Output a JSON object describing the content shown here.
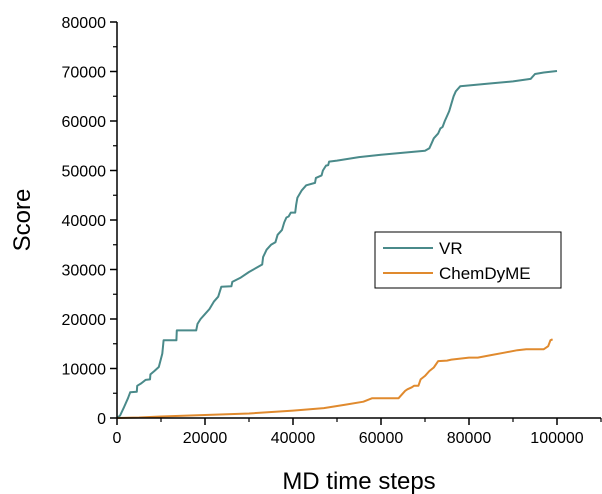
{
  "chart_data": {
    "type": "line",
    "xlabel": "MD time steps",
    "ylabel": "Score",
    "xlim": [
      0,
      110000
    ],
    "ylim": [
      0,
      80000
    ],
    "x_ticks": [
      0,
      20000,
      40000,
      60000,
      80000,
      100000
    ],
    "x_tick_labels": [
      "0",
      "20000",
      "40000",
      "60000",
      "80000",
      "100000"
    ],
    "y_ticks": [
      0,
      10000,
      20000,
      30000,
      40000,
      50000,
      60000,
      70000,
      80000
    ],
    "y_tick_labels": [
      "0",
      "10000",
      "20000",
      "30000",
      "40000",
      "50000",
      "60000",
      "70000",
      "80000"
    ],
    "grid": false,
    "legend_position": "center-right",
    "series": [
      {
        "name": "VR",
        "color": "#4a8a8a",
        "points": [
          [
            0,
            0
          ],
          [
            700,
            500
          ],
          [
            1500,
            2000
          ],
          [
            2500,
            4000
          ],
          [
            3000,
            5200
          ],
          [
            4500,
            5300
          ],
          [
            4600,
            6500
          ],
          [
            5500,
            7000
          ],
          [
            6500,
            7700
          ],
          [
            7500,
            7800
          ],
          [
            7600,
            8800
          ],
          [
            8500,
            9500
          ],
          [
            9500,
            10300
          ],
          [
            10000,
            12000
          ],
          [
            10300,
            13000
          ],
          [
            10600,
            15700
          ],
          [
            13500,
            15700
          ],
          [
            13600,
            17700
          ],
          [
            18000,
            17700
          ],
          [
            18300,
            19000
          ],
          [
            19000,
            20000
          ],
          [
            20000,
            21000
          ],
          [
            21000,
            22000
          ],
          [
            22000,
            23500
          ],
          [
            22500,
            24000
          ],
          [
            23000,
            24500
          ],
          [
            23700,
            26500
          ],
          [
            26000,
            26600
          ],
          [
            26200,
            27500
          ],
          [
            28000,
            28300
          ],
          [
            30000,
            29500
          ],
          [
            32000,
            30500
          ],
          [
            33000,
            31000
          ],
          [
            33200,
            32500
          ],
          [
            34000,
            34000
          ],
          [
            35000,
            35000
          ],
          [
            36000,
            35500
          ],
          [
            36500,
            37000
          ],
          [
            37500,
            38000
          ],
          [
            38000,
            39500
          ],
          [
            38500,
            40500
          ],
          [
            39000,
            40700
          ],
          [
            39500,
            41500
          ],
          [
            40500,
            41500
          ],
          [
            40700,
            43000
          ],
          [
            41000,
            44500
          ],
          [
            42000,
            46000
          ],
          [
            43000,
            47000
          ],
          [
            45000,
            47500
          ],
          [
            45200,
            48500
          ],
          [
            46500,
            49000
          ],
          [
            46800,
            50000
          ],
          [
            47500,
            51000
          ],
          [
            48000,
            51100
          ],
          [
            48200,
            51800
          ],
          [
            50000,
            52000
          ],
          [
            55000,
            52700
          ],
          [
            60000,
            53200
          ],
          [
            65000,
            53600
          ],
          [
            70000,
            54000
          ],
          [
            71000,
            54500
          ],
          [
            71500,
            55500
          ],
          [
            72000,
            56500
          ],
          [
            73000,
            57500
          ],
          [
            73500,
            58500
          ],
          [
            74000,
            58800
          ],
          [
            74500,
            60000
          ],
          [
            75000,
            61000
          ],
          [
            75500,
            62000
          ],
          [
            76000,
            63500
          ],
          [
            76500,
            65000
          ],
          [
            77000,
            66000
          ],
          [
            78000,
            67000
          ],
          [
            85000,
            67600
          ],
          [
            90000,
            68000
          ],
          [
            94000,
            68500
          ],
          [
            95000,
            69500
          ],
          [
            97000,
            69800
          ],
          [
            100000,
            70100
          ]
        ]
      },
      {
        "name": "ChemDyME",
        "color": "#e08a2e",
        "points": [
          [
            0,
            0
          ],
          [
            5000,
            100
          ],
          [
            10000,
            300
          ],
          [
            20000,
            600
          ],
          [
            30000,
            900
          ],
          [
            40000,
            1500
          ],
          [
            47000,
            2000
          ],
          [
            52000,
            2700
          ],
          [
            56000,
            3300
          ],
          [
            58000,
            4000
          ],
          [
            64000,
            4000
          ],
          [
            64500,
            4500
          ],
          [
            65500,
            5500
          ],
          [
            66000,
            5800
          ],
          [
            67000,
            6200
          ],
          [
            67500,
            6500
          ],
          [
            68500,
            6500
          ],
          [
            69000,
            7800
          ],
          [
            70000,
            8500
          ],
          [
            71000,
            9500
          ],
          [
            72000,
            10200
          ],
          [
            73000,
            11500
          ],
          [
            75000,
            11600
          ],
          [
            76000,
            11800
          ],
          [
            78000,
            12000
          ],
          [
            80000,
            12200
          ],
          [
            82000,
            12200
          ],
          [
            85000,
            12700
          ],
          [
            88000,
            13200
          ],
          [
            91000,
            13700
          ],
          [
            93000,
            13900
          ],
          [
            97000,
            13900
          ],
          [
            98000,
            14500
          ],
          [
            98500,
            15700
          ],
          [
            99000,
            15900
          ]
        ]
      }
    ]
  }
}
